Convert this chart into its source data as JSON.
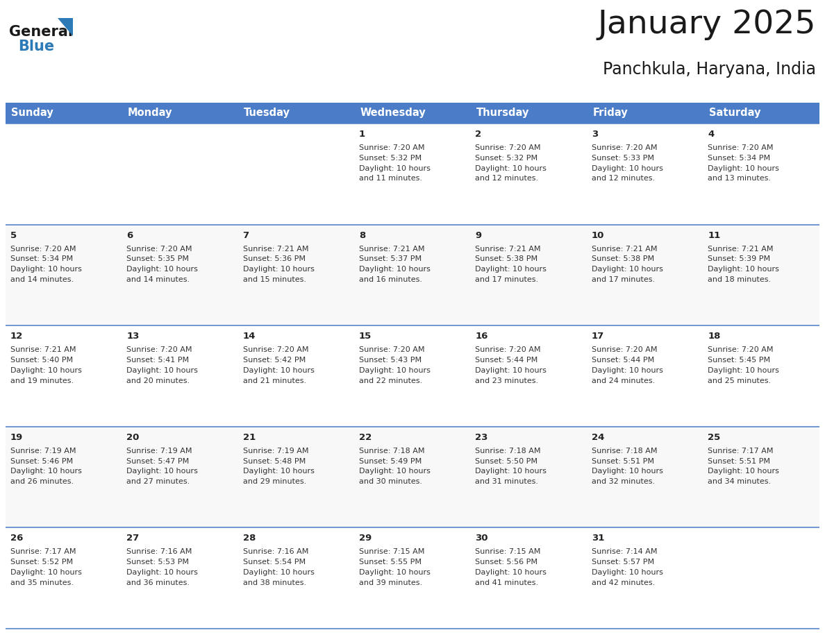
{
  "title": "January 2025",
  "subtitle": "Panchkula, Haryana, India",
  "header_bg": "#4a7cc7",
  "header_text_color": "#FFFFFF",
  "days_of_week": [
    "Sunday",
    "Monday",
    "Tuesday",
    "Wednesday",
    "Thursday",
    "Friday",
    "Saturday"
  ],
  "num_rows": 5,
  "num_cols": 7,
  "row_line_color": "#4a7cc7",
  "col_line_color": "#cccccc",
  "row_bg_light": "#f8f8f8",
  "row_bg_white": "#ffffff",
  "day_number_color": "#222222",
  "text_color": "#333333",
  "calendar": [
    [
      null,
      null,
      null,
      {
        "day": "1",
        "sunrise": "7:20 AM",
        "sunset": "5:32 PM",
        "daylight_line1": "Daylight: 10 hours",
        "daylight_line2": "and 11 minutes."
      },
      {
        "day": "2",
        "sunrise": "7:20 AM",
        "sunset": "5:32 PM",
        "daylight_line1": "Daylight: 10 hours",
        "daylight_line2": "and 12 minutes."
      },
      {
        "day": "3",
        "sunrise": "7:20 AM",
        "sunset": "5:33 PM",
        "daylight_line1": "Daylight: 10 hours",
        "daylight_line2": "and 12 minutes."
      },
      {
        "day": "4",
        "sunrise": "7:20 AM",
        "sunset": "5:34 PM",
        "daylight_line1": "Daylight: 10 hours",
        "daylight_line2": "and 13 minutes."
      }
    ],
    [
      {
        "day": "5",
        "sunrise": "7:20 AM",
        "sunset": "5:34 PM",
        "daylight_line1": "Daylight: 10 hours",
        "daylight_line2": "and 14 minutes."
      },
      {
        "day": "6",
        "sunrise": "7:20 AM",
        "sunset": "5:35 PM",
        "daylight_line1": "Daylight: 10 hours",
        "daylight_line2": "and 14 minutes."
      },
      {
        "day": "7",
        "sunrise": "7:21 AM",
        "sunset": "5:36 PM",
        "daylight_line1": "Daylight: 10 hours",
        "daylight_line2": "and 15 minutes."
      },
      {
        "day": "8",
        "sunrise": "7:21 AM",
        "sunset": "5:37 PM",
        "daylight_line1": "Daylight: 10 hours",
        "daylight_line2": "and 16 minutes."
      },
      {
        "day": "9",
        "sunrise": "7:21 AM",
        "sunset": "5:38 PM",
        "daylight_line1": "Daylight: 10 hours",
        "daylight_line2": "and 17 minutes."
      },
      {
        "day": "10",
        "sunrise": "7:21 AM",
        "sunset": "5:38 PM",
        "daylight_line1": "Daylight: 10 hours",
        "daylight_line2": "and 17 minutes."
      },
      {
        "day": "11",
        "sunrise": "7:21 AM",
        "sunset": "5:39 PM",
        "daylight_line1": "Daylight: 10 hours",
        "daylight_line2": "and 18 minutes."
      }
    ],
    [
      {
        "day": "12",
        "sunrise": "7:21 AM",
        "sunset": "5:40 PM",
        "daylight_line1": "Daylight: 10 hours",
        "daylight_line2": "and 19 minutes."
      },
      {
        "day": "13",
        "sunrise": "7:20 AM",
        "sunset": "5:41 PM",
        "daylight_line1": "Daylight: 10 hours",
        "daylight_line2": "and 20 minutes."
      },
      {
        "day": "14",
        "sunrise": "7:20 AM",
        "sunset": "5:42 PM",
        "daylight_line1": "Daylight: 10 hours",
        "daylight_line2": "and 21 minutes."
      },
      {
        "day": "15",
        "sunrise": "7:20 AM",
        "sunset": "5:43 PM",
        "daylight_line1": "Daylight: 10 hours",
        "daylight_line2": "and 22 minutes."
      },
      {
        "day": "16",
        "sunrise": "7:20 AM",
        "sunset": "5:44 PM",
        "daylight_line1": "Daylight: 10 hours",
        "daylight_line2": "and 23 minutes."
      },
      {
        "day": "17",
        "sunrise": "7:20 AM",
        "sunset": "5:44 PM",
        "daylight_line1": "Daylight: 10 hours",
        "daylight_line2": "and 24 minutes."
      },
      {
        "day": "18",
        "sunrise": "7:20 AM",
        "sunset": "5:45 PM",
        "daylight_line1": "Daylight: 10 hours",
        "daylight_line2": "and 25 minutes."
      }
    ],
    [
      {
        "day": "19",
        "sunrise": "7:19 AM",
        "sunset": "5:46 PM",
        "daylight_line1": "Daylight: 10 hours",
        "daylight_line2": "and 26 minutes."
      },
      {
        "day": "20",
        "sunrise": "7:19 AM",
        "sunset": "5:47 PM",
        "daylight_line1": "Daylight: 10 hours",
        "daylight_line2": "and 27 minutes."
      },
      {
        "day": "21",
        "sunrise": "7:19 AM",
        "sunset": "5:48 PM",
        "daylight_line1": "Daylight: 10 hours",
        "daylight_line2": "and 29 minutes."
      },
      {
        "day": "22",
        "sunrise": "7:18 AM",
        "sunset": "5:49 PM",
        "daylight_line1": "Daylight: 10 hours",
        "daylight_line2": "and 30 minutes."
      },
      {
        "day": "23",
        "sunrise": "7:18 AM",
        "sunset": "5:50 PM",
        "daylight_line1": "Daylight: 10 hours",
        "daylight_line2": "and 31 minutes."
      },
      {
        "day": "24",
        "sunrise": "7:18 AM",
        "sunset": "5:51 PM",
        "daylight_line1": "Daylight: 10 hours",
        "daylight_line2": "and 32 minutes."
      },
      {
        "day": "25",
        "sunrise": "7:17 AM",
        "sunset": "5:51 PM",
        "daylight_line1": "Daylight: 10 hours",
        "daylight_line2": "and 34 minutes."
      }
    ],
    [
      {
        "day": "26",
        "sunrise": "7:17 AM",
        "sunset": "5:52 PM",
        "daylight_line1": "Daylight: 10 hours",
        "daylight_line2": "and 35 minutes."
      },
      {
        "day": "27",
        "sunrise": "7:16 AM",
        "sunset": "5:53 PM",
        "daylight_line1": "Daylight: 10 hours",
        "daylight_line2": "and 36 minutes."
      },
      {
        "day": "28",
        "sunrise": "7:16 AM",
        "sunset": "5:54 PM",
        "daylight_line1": "Daylight: 10 hours",
        "daylight_line2": "and 38 minutes."
      },
      {
        "day": "29",
        "sunrise": "7:15 AM",
        "sunset": "5:55 PM",
        "daylight_line1": "Daylight: 10 hours",
        "daylight_line2": "and 39 minutes."
      },
      {
        "day": "30",
        "sunrise": "7:15 AM",
        "sunset": "5:56 PM",
        "daylight_line1": "Daylight: 10 hours",
        "daylight_line2": "and 41 minutes."
      },
      {
        "day": "31",
        "sunrise": "7:14 AM",
        "sunset": "5:57 PM",
        "daylight_line1": "Daylight: 10 hours",
        "daylight_line2": "and 42 minutes."
      },
      null
    ]
  ],
  "logo_general_color": "#1a1a1a",
  "logo_blue_color": "#2c7bb6",
  "logo_triangle_color": "#2c7bb6",
  "title_color": "#1a1a1a",
  "subtitle_color": "#1a1a1a"
}
